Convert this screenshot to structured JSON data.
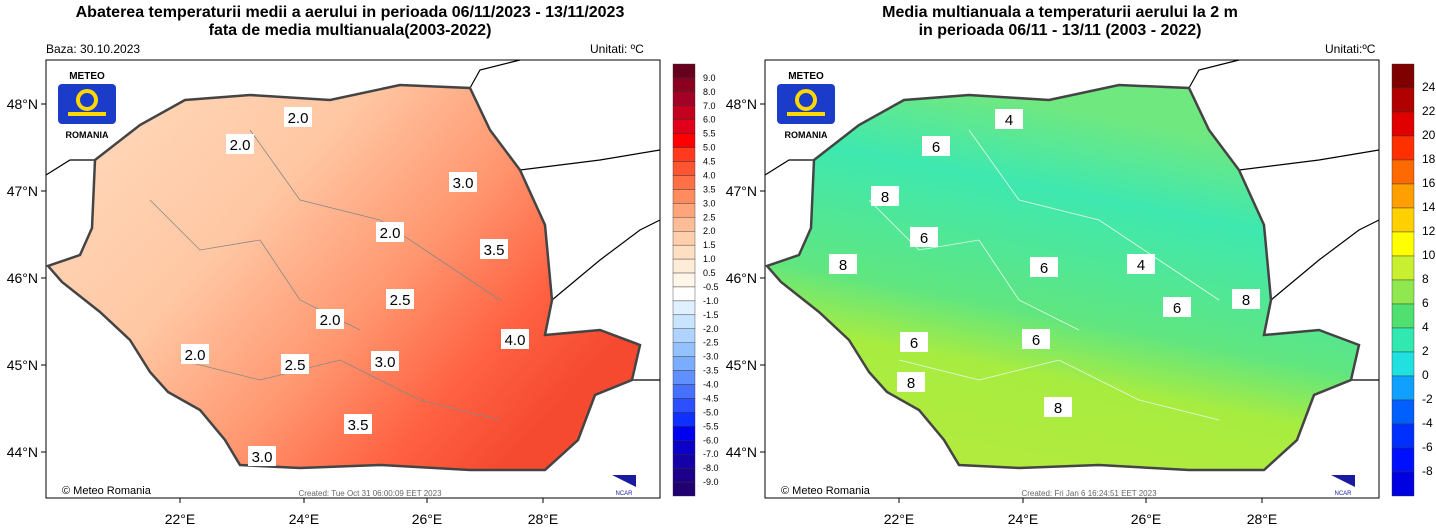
{
  "left": {
    "title_line1": "Abaterea temperaturii medii a aerului in perioada 06/11/2023 - 13/11/2023",
    "title_line2": "fata de media multianuala(2003-2022)",
    "base": "Baza: 30.10.2023",
    "units": "Unitati: ºC",
    "created": "Created: Tue Oct 31 06:00:09 EET 2023",
    "copyright": "© Meteo Romania",
    "colorbar_labels": [
      "9.0",
      "8.0",
      "7.0",
      "6.0",
      "5.5",
      "5.0",
      "4.5",
      "4.0",
      "3.5",
      "3.0",
      "2.5",
      "2.0",
      "1.5",
      "1.0",
      "0.5",
      "-0.5",
      "-1.0",
      "-1.5",
      "-2.0",
      "-2.5",
      "-3.0",
      "-3.5",
      "-4.0",
      "-4.5",
      "-5.0",
      "-5.5",
      "-6.0",
      "-7.0",
      "-8.0",
      "-9.0"
    ],
    "colorbar_colors": [
      "#67001f",
      "#8b0021",
      "#a50026",
      "#c4001f",
      "#e0001a",
      "#ff0000",
      "#ff3a1f",
      "#ff5533",
      "#ff7047",
      "#ff8c5f",
      "#ffa57b",
      "#ffbd96",
      "#ffcfac",
      "#ffdfc2",
      "#ffecd8",
      "#fff5e8",
      "#ffffff",
      "#e0f0ff",
      "#c8e4ff",
      "#aed4ff",
      "#94c2ff",
      "#7aacff",
      "#6090ff",
      "#4670ff",
      "#2c50ff",
      "#1030ff",
      "#0000f0",
      "#0c00c8",
      "#1600a8",
      "#1c008c",
      "#200070"
    ],
    "contour_labels": [
      "2.0",
      "2.0",
      "3.0",
      "2.0",
      "3.5",
      "2.5",
      "2.0",
      "2.0",
      "2.5",
      "3.0",
      "4.0",
      "3.5",
      "3.0"
    ]
  },
  "right": {
    "title_line1": "Media multianuala a temperaturii aerului la 2 m",
    "title_line2": "in perioada 06/11 - 13/11 (2003 - 2022)",
    "units": "Unitati:ºC",
    "created": "Created: Fri Jan  6 16:24:51 EET 2023",
    "copyright": "© Meteo Romania",
    "colorbar_labels": [
      "24",
      "22",
      "20",
      "18",
      "16",
      "14",
      "12",
      "10",
      "8",
      "6",
      "4",
      "2",
      "0",
      "-2",
      "-4",
      "-6",
      "-8"
    ],
    "colorbar_colors": [
      "#800000",
      "#b00000",
      "#e00000",
      "#ff3000",
      "#ff6a00",
      "#ffa000",
      "#ffd000",
      "#ffff00",
      "#c8f030",
      "#90e850",
      "#50e070",
      "#30e8b0",
      "#20e0e0",
      "#10a0ff",
      "#0060ff",
      "#0030ff",
      "#0010ff",
      "#0000e0"
    ],
    "contour_labels": [
      "6",
      "4",
      "8",
      "6",
      "8",
      "6",
      "4",
      "6",
      "8",
      "6",
      "6",
      "8",
      "8"
    ]
  },
  "axes": {
    "lon": [
      "22°E",
      "24°E",
      "26°E",
      "28°E"
    ],
    "lat": [
      "48°N",
      "47°N",
      "46°N",
      "45°N",
      "44°N"
    ]
  },
  "logo": {
    "top": "METEO",
    "bottom": "ROMANIA"
  },
  "ncar": "NCAR"
}
